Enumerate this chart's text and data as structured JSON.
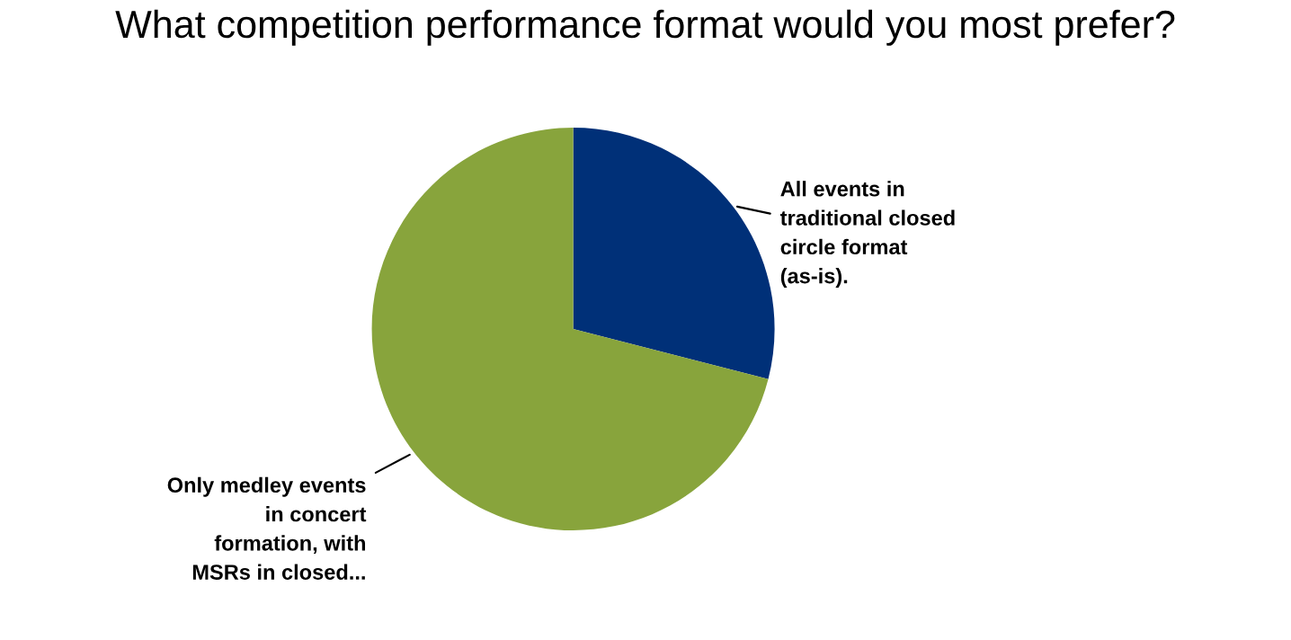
{
  "chart_data": {
    "type": "pie",
    "title": "What competition performance format would you most prefer?",
    "categories": [
      "All events in\ntraditional closed\ncircle format\n(as-is).",
      "Only medley events\nin concert\nformation, with\nMSRs in closed..."
    ],
    "values": [
      29,
      71
    ],
    "colors": [
      "#003078",
      "#88a43c"
    ],
    "legend": false
  }
}
